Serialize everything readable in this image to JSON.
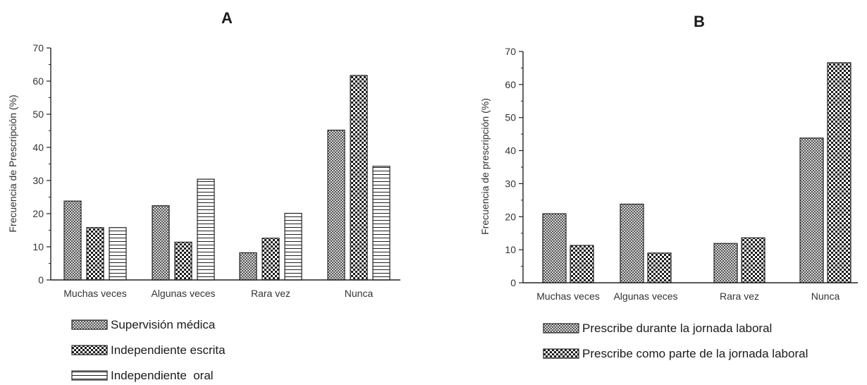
{
  "patterns": {
    "supervision": "pat-crosshatch",
    "escrita": "pat-checker",
    "oral": "pat-hlines"
  },
  "colors": {
    "ink": "#222222",
    "background": "#ffffff"
  },
  "chart_data": [
    {
      "type": "bar",
      "title": "A",
      "xlabel": "",
      "ylabel": "Frecuencia de Prescripción (%)",
      "ylim": [
        0,
        70
      ],
      "yticks": [
        0,
        10,
        20,
        30,
        40,
        50,
        60,
        70
      ],
      "grid": false,
      "legend_position": "bottom-left",
      "categories": [
        "Muchas veces",
        "Algunas veces",
        "Rara vez",
        "Nunca"
      ],
      "series": [
        {
          "name": "Supervisión médica",
          "pattern": "supervision",
          "values": [
            23.8,
            22.4,
            8.2,
            45.2
          ]
        },
        {
          "name": "Independiente escrita",
          "pattern": "escrita",
          "values": [
            15.8,
            11.4,
            12.6,
            61.7
          ]
        },
        {
          "name": "Independiente  oral",
          "pattern": "oral",
          "values": [
            15.8,
            30.4,
            20.1,
            34.3
          ]
        }
      ]
    },
    {
      "type": "bar",
      "title": "B",
      "xlabel": "",
      "ylabel": "Frecuencia de prescripción (%)",
      "ylim": [
        0,
        70
      ],
      "yticks": [
        0,
        10,
        20,
        30,
        40,
        50,
        60,
        70
      ],
      "grid": false,
      "legend_position": "bottom",
      "categories": [
        "Muchas veces",
        "Algunas veces",
        "Rara vez",
        "Nunca"
      ],
      "series": [
        {
          "name": "Prescribe durante la jornada laboral",
          "pattern": "supervision",
          "values": [
            20.9,
            23.8,
            11.9,
            43.8
          ]
        },
        {
          "name": "Prescribe como parte de la jornada laboral",
          "pattern": "escrita",
          "values": [
            11.3,
            9.0,
            13.6,
            66.6
          ]
        }
      ]
    }
  ]
}
